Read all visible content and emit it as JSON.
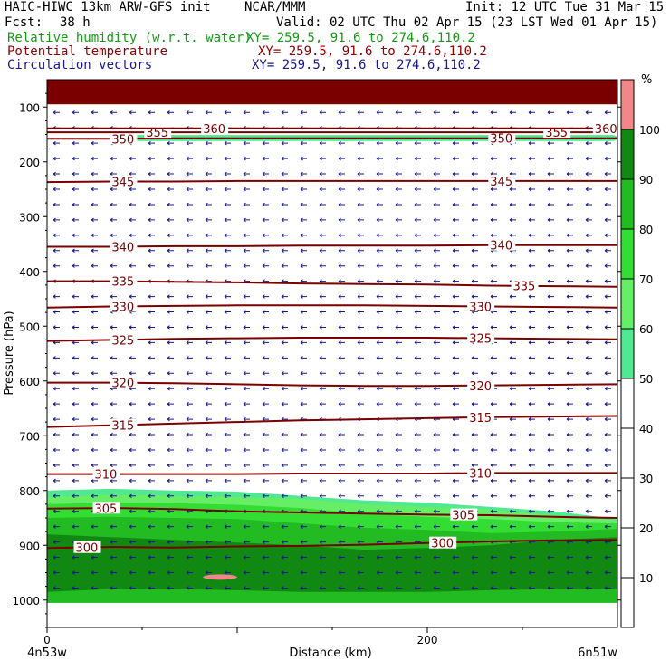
{
  "header": {
    "model": "HAIC-HIWC 13km ARW-GFS init",
    "org": "NCAR/MMM",
    "init": "Init: 12 UTC Tue 31 Mar 15",
    "fcst_label": "Fcst:",
    "fcst_value": "38 h",
    "valid": "Valid: 02 UTC Thu 02 Apr 15 (23 LST Wed 01 Apr 15)",
    "fields": [
      {
        "name": "Relative humidity (w.r.t. water)",
        "xy": "XY= 259.5, 91.6 to 274.6,110.2",
        "color": "#159a15"
      },
      {
        "name": "Potential temperature",
        "xy": "XY= 259.5, 91.6 to 274.6,110.2",
        "color": "#8b0000"
      },
      {
        "name": "Circulation vectors",
        "xy": "XY= 259.5, 91.6 to 274.6,110.2",
        "color": "#1a1a8a"
      }
    ]
  },
  "chart_data": {
    "type": "heatmap",
    "xlabel": "Distance (km)",
    "ylabel": "Pressure (hPa)",
    "x_ticks": [
      0,
      200
    ],
    "xlim": [
      0,
      300
    ],
    "ylim": [
      1050,
      50
    ],
    "y_ticks": [
      100,
      200,
      300,
      400,
      500,
      600,
      700,
      800,
      900,
      1000
    ],
    "x_endpoint_labels": {
      "left": "4n53w",
      "right": "6n51w"
    },
    "colorbar": {
      "unit": "%",
      "ticks": [
        10,
        20,
        30,
        40,
        50,
        60,
        70,
        80,
        90,
        100
      ],
      "shaded_bands": [
        {
          "range": [
            50,
            60
          ],
          "color": "#50e890"
        },
        {
          "range": [
            60,
            70
          ],
          "color": "#66ee66"
        },
        {
          "range": [
            70,
            80
          ],
          "color": "#33dd33"
        },
        {
          "range": [
            80,
            90
          ],
          "color": "#22bb22"
        },
        {
          "range": [
            90,
            100
          ],
          "color": "#118811"
        },
        {
          "range": [
            100,
            110
          ],
          "color": "#f08888"
        }
      ]
    },
    "theta_contours": [
      {
        "value": 300,
        "pressure": [
          905,
          903,
          904,
          902,
          901,
          899,
          896,
          893,
          891,
          890
        ],
        "labels": [
          {
            "text": "300",
            "x": 15
          },
          {
            "text": "300",
            "x": 202
          }
        ]
      },
      {
        "value": 305,
        "pressure": [
          833,
          832,
          834,
          838,
          840,
          842,
          844,
          845,
          848,
          850
        ],
        "labels": [
          {
            "text": "305",
            "x": 25
          },
          {
            "text": "305",
            "x": 213
          }
        ]
      },
      {
        "value": 310,
        "pressure": [
          770,
          770,
          770,
          770,
          769,
          769,
          769,
          768,
          768,
          768
        ],
        "labels": [
          {
            "text": "310",
            "x": 25
          },
          {
            "text": "310",
            "x": 222
          }
        ]
      },
      {
        "value": 315,
        "pressure": [
          684,
          681,
          678,
          675,
          672,
          670,
          668,
          666,
          665,
          664
        ],
        "labels": [
          {
            "text": "315",
            "x": 34
          },
          {
            "text": "315",
            "x": 222
          }
        ]
      },
      {
        "value": 320,
        "pressure": [
          603,
          603,
          604,
          606,
          608,
          609,
          609,
          608,
          607,
          606
        ],
        "labels": [
          {
            "text": "320",
            "x": 34
          },
          {
            "text": "320",
            "x": 222
          }
        ]
      },
      {
        "value": 325,
        "pressure": [
          527,
          525,
          523,
          522,
          521,
          521,
          521,
          522,
          523,
          524
        ],
        "labels": [
          {
            "text": "325",
            "x": 34
          },
          {
            "text": "325",
            "x": 222
          }
        ]
      },
      {
        "value": 330,
        "pressure": [
          466,
          464,
          463,
          462,
          462,
          462,
          463,
          464,
          465,
          466
        ],
        "labels": [
          {
            "text": "330",
            "x": 34
          },
          {
            "text": "330",
            "x": 222
          }
        ]
      },
      {
        "value": 335,
        "pressure": [
          418,
          418,
          419,
          420,
          422,
          423,
          424,
          426,
          427,
          428
        ],
        "labels": [
          {
            "text": "335",
            "x": 34
          },
          {
            "text": "335",
            "x": 245
          }
        ]
      },
      {
        "value": 340,
        "pressure": [
          355,
          355,
          354,
          354,
          353,
          353,
          353,
          352,
          352,
          352
        ],
        "labels": [
          {
            "text": "340",
            "x": 34
          },
          {
            "text": "340",
            "x": 233
          }
        ]
      },
      {
        "value": 345,
        "pressure": [
          237,
          236,
          236,
          235,
          235,
          235,
          235,
          235,
          235,
          235
        ],
        "labels": [
          {
            "text": "345",
            "x": 34
          },
          {
            "text": "345",
            "x": 233
          }
        ]
      },
      {
        "value": 350,
        "pressure": [
          158,
          158,
          157,
          157,
          157,
          157,
          157,
          157,
          157,
          157
        ],
        "labels": [
          {
            "text": "350",
            "x": 34
          },
          {
            "text": "350",
            "x": 233
          }
        ]
      },
      {
        "value": 355,
        "pressure": [
          146,
          146,
          146,
          146,
          146,
          146,
          146,
          146,
          146,
          146
        ],
        "labels": [
          {
            "text": "355",
            "x": 52
          },
          {
            "text": "355",
            "x": 262
          }
        ]
      },
      {
        "value": 360,
        "pressure": [
          139,
          139,
          139,
          139,
          139,
          139,
          139,
          139,
          139,
          139
        ],
        "labels": [
          {
            "text": "360",
            "x": 82
          },
          {
            "text": "360",
            "x": 288
          }
        ]
      }
    ],
    "rh_regions": [
      {
        "band": "50-60",
        "top": [
          800,
          797,
          800,
          802,
          810,
          818,
          822,
          830,
          838,
          852
        ],
        "bottom": [
          1005,
          1005,
          1005,
          1005,
          1005,
          1005,
          1005,
          1005,
          1005,
          1005
        ]
      },
      {
        "band": "60-70",
        "top": [
          812,
          808,
          810,
          812,
          815,
          825,
          830,
          835,
          845,
          855
        ],
        "bottom": [
          1005,
          1005,
          1005,
          1005,
          1005,
          1005,
          1005,
          1005,
          1005,
          1005
        ]
      },
      {
        "band": "70-80",
        "top": [
          825,
          822,
          823,
          826,
          832,
          842,
          848,
          852,
          858,
          860
        ],
        "bottom": [
          1005,
          1005,
          1005,
          1005,
          1005,
          1005,
          1005,
          1005,
          1005,
          1005
        ]
      },
      {
        "band": "80-90",
        "top": [
          850,
          848,
          850,
          852,
          860,
          868,
          872,
          878,
          875,
          870
        ],
        "bottom": [
          1005,
          1005,
          1005,
          1005,
          1005,
          1005,
          1005,
          1005,
          1005,
          1005
        ]
      },
      {
        "band": "90-100",
        "top": [
          880,
          885,
          890,
          895,
          900,
          908,
          905,
          900,
          890,
          885
        ],
        "bottom": [
          985,
          980,
          980,
          982,
          985,
          985,
          985,
          982,
          980,
          980
        ]
      }
    ],
    "rh_upper_band": {
      "band": "50-60",
      "x_range": [
        42,
        300
      ],
      "p_top": 151,
      "p_bottom": 162
    },
    "rh_saturated_spot": {
      "band": "100-110",
      "x_range": [
        82,
        100
      ],
      "p_center": 958
    },
    "top_band": {
      "p_top": 50,
      "p_bottom": 95,
      "color": "#7a0000"
    },
    "wind_vectors": {
      "direction": "westward",
      "rows_hpa_step": 28,
      "columns_km_step": 10
    }
  }
}
